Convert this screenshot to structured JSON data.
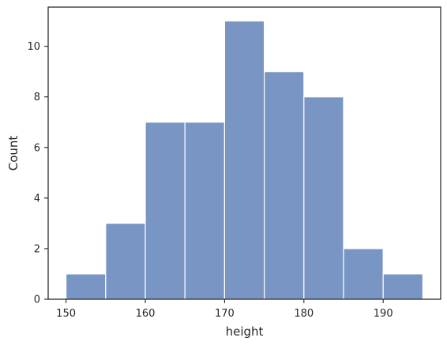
{
  "chart_data": {
    "type": "bar",
    "subtype": "histogram",
    "bin_edges": [
      150,
      155,
      160,
      165,
      170,
      175,
      180,
      185,
      190,
      195
    ],
    "values": [
      1,
      3,
      7,
      7,
      11,
      9,
      8,
      2,
      1
    ],
    "xlabel": "height",
    "ylabel": "Count",
    "xticks": [
      150,
      160,
      170,
      180,
      190
    ],
    "yticks": [
      0,
      2,
      4,
      6,
      8,
      10
    ],
    "xlim": [
      147.75,
      197.25
    ],
    "ylim": [
      0,
      11.55
    ],
    "grid": false,
    "colors": {
      "bar": "#4c72b0",
      "edge": "#ffffff",
      "frame": "#262626"
    }
  }
}
